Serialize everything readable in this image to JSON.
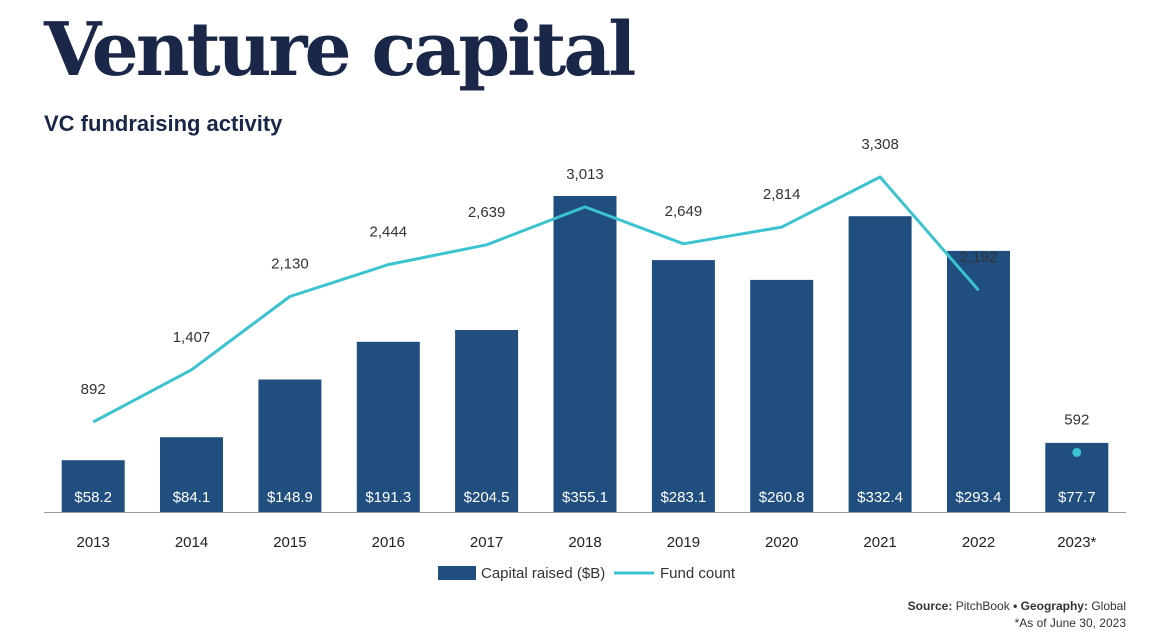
{
  "header": {
    "title": "Venture capital",
    "subtitle": "VC fundraising activity"
  },
  "footer": {
    "source_label": "Source:",
    "source_value": "PitchBook",
    "separator": "•",
    "geography_label": "Geography:",
    "geography_value": "Global",
    "note": "*As of June 30, 2023"
  },
  "chart_data": {
    "type": "bar",
    "categories": [
      "2013",
      "2014",
      "2015",
      "2016",
      "2017",
      "2018",
      "2019",
      "2020",
      "2021",
      "2022",
      "2023*"
    ],
    "series": [
      {
        "name": "Capital raised ($B)",
        "type": "bar",
        "values": [
          58.2,
          84.1,
          148.9,
          191.3,
          204.5,
          355.1,
          283.1,
          260.8,
          332.4,
          293.4,
          77.7
        ],
        "labels": [
          "$58.2",
          "$84.1",
          "$148.9",
          "$191.3",
          "$204.5",
          "$355.1",
          "$283.1",
          "$260.8",
          "$332.4",
          "$293.4",
          "$77.7"
        ],
        "color": "#1f4e7f"
      },
      {
        "name": "Fund count",
        "type": "line",
        "values": [
          892,
          1407,
          2130,
          2444,
          2639,
          3013,
          2649,
          2814,
          3308,
          2192,
          592
        ],
        "labels": [
          "892",
          "1,407",
          "2,130",
          "2,444",
          "2,639",
          "3,013",
          "2,649",
          "2,814",
          "3,308",
          "2,192",
          "592"
        ],
        "color": "#3cc3d0"
      }
    ],
    "ylim_capital": [
      0,
      400
    ],
    "ylim_count": [
      0,
      4000
    ],
    "legend_position": "bottom-center",
    "grid": false
  }
}
